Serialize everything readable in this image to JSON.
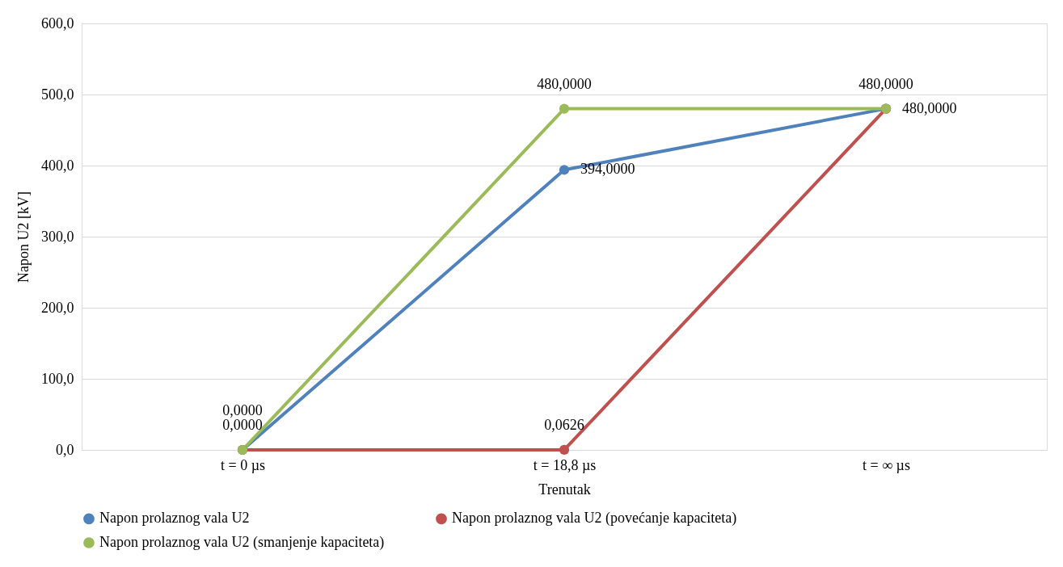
{
  "chart_data": {
    "type": "line",
    "xlabel": "Trenutak",
    "ylabel": "Napon U2  [kV]",
    "categories": [
      "t = 0 µs",
      "t = 18,8 µs",
      "t = ∞ µs"
    ],
    "series": [
      {
        "name": "Napon prolaznog vala U2",
        "color": "#4f81bd",
        "values": [
          0,
          394,
          480
        ],
        "value_labels": [
          "0,0000",
          "394,0000",
          "480,0000"
        ]
      },
      {
        "name": "Napon prolaznog vala U2 (povećanje kapaciteta)",
        "color": "#c0504d",
        "values": [
          0,
          0.0626,
          480
        ],
        "value_labels": [
          null,
          "0,0626",
          null
        ]
      },
      {
        "name": "Napon prolaznog vala U2 (smanjenje kapaciteta)",
        "color": "#9bbb59",
        "values": [
          0,
          480,
          480
        ],
        "value_labels": [
          "0,0000",
          "480,0000",
          "480,0000"
        ]
      }
    ],
    "ylim": [
      0,
      600
    ],
    "yticks": [
      {
        "value": 0,
        "label": "0,0"
      },
      {
        "value": 100,
        "label": "100,0"
      },
      {
        "value": 200,
        "label": "200,0"
      },
      {
        "value": 300,
        "label": "300,0"
      },
      {
        "value": 400,
        "label": "400,0"
      },
      {
        "value": 500,
        "label": "500,0"
      },
      {
        "value": 600,
        "label": "600,0"
      }
    ],
    "grid": "y",
    "legend": "bottom",
    "marker": "circle",
    "line_style": "solid"
  }
}
